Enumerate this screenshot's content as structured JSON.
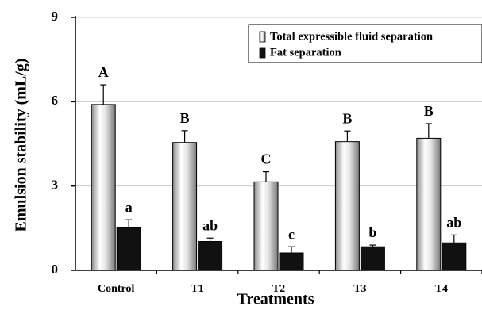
{
  "chart_data": {
    "type": "bar",
    "xlabel": "Treatments",
    "ylabel": "Emulsion stability (mL/g)",
    "ylim": [
      0,
      9
    ],
    "yticks": [
      "0",
      "3",
      "6",
      "9"
    ],
    "grid": true,
    "legend_position": "top-right",
    "categories": [
      "Control",
      "T1",
      "T2",
      "T3",
      "T4"
    ],
    "series": [
      {
        "name": "Total expressible fluid separation",
        "values": [
          5.9,
          4.55,
          3.15,
          4.58,
          4.7
        ],
        "errors": [
          0.7,
          0.42,
          0.36,
          0.38,
          0.52
        ],
        "letters": [
          "A",
          "B",
          "C",
          "B",
          "B"
        ],
        "style": "cylinder-gray"
      },
      {
        "name": "Fat separation",
        "values": [
          1.52,
          1.03,
          0.62,
          0.84,
          0.98
        ],
        "errors": [
          0.28,
          0.12,
          0.22,
          0.06,
          0.28
        ],
        "letters": [
          "a",
          "ab",
          "c",
          "b",
          "ab"
        ],
        "style": "solid-black"
      }
    ]
  }
}
